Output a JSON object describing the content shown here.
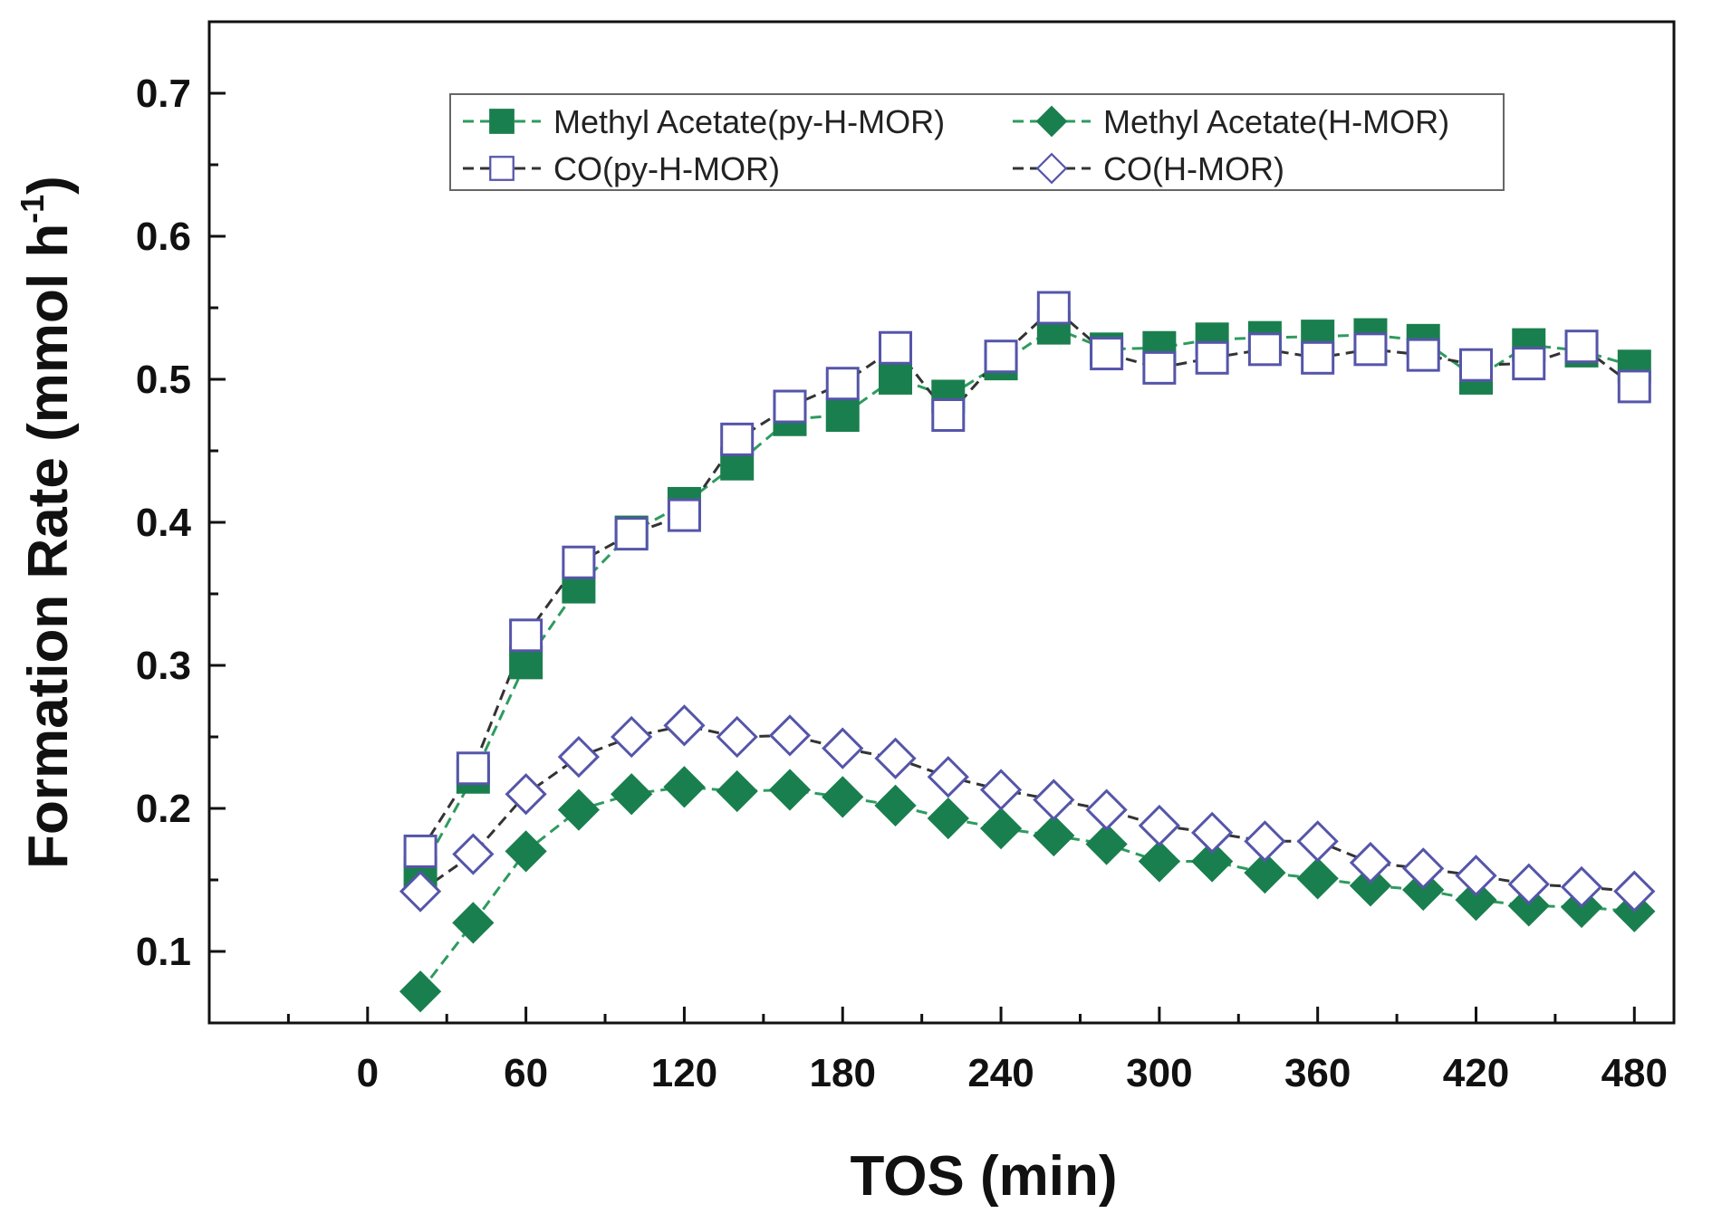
{
  "chart_data": {
    "type": "line",
    "title": "",
    "xlabel": "TOS (min)",
    "ylabel_main": "Formation Rate (mmol h",
    "ylabel_sup": "-1",
    "ylabel_close": ")",
    "xlim": [
      -60,
      495
    ],
    "ylim": [
      0.05,
      0.75
    ],
    "xticks": [
      0,
      60,
      120,
      180,
      240,
      300,
      360,
      420,
      480
    ],
    "xtick_labels": [
      "0",
      "60",
      "120",
      "180",
      "240",
      "300",
      "360",
      "420",
      "480"
    ],
    "yticks": [
      0.1,
      0.2,
      0.3,
      0.4,
      0.5,
      0.6,
      0.7
    ],
    "ytick_labels": [
      "0.1",
      "0.2",
      "0.3",
      "0.4",
      "0.5",
      "0.6",
      "0.7"
    ],
    "legend_position": "top",
    "grid": false,
    "x": [
      20,
      40,
      60,
      80,
      100,
      120,
      140,
      160,
      180,
      200,
      220,
      240,
      260,
      280,
      300,
      320,
      340,
      360,
      380,
      400,
      420,
      440,
      460,
      480
    ],
    "series": [
      {
        "name": "Methyl Acetate(py-H-MOR)",
        "marker": "square-filled",
        "color": "#1a7f4e",
        "line_color": "#2e9b5f",
        "values": [
          0.155,
          0.222,
          0.302,
          0.355,
          0.393,
          0.413,
          0.441,
          0.472,
          0.475,
          0.501,
          0.488,
          0.511,
          0.536,
          0.521,
          0.522,
          0.528,
          0.529,
          0.53,
          0.531,
          0.527,
          0.501,
          0.524,
          0.52,
          0.509
        ]
      },
      {
        "name": "Methyl Acetate(H-MOR)",
        "marker": "diamond-filled",
        "color": "#1a7f4e",
        "line_color": "#2e9b5f",
        "values": [
          0.072,
          0.12,
          0.17,
          0.199,
          0.21,
          0.215,
          0.212,
          0.213,
          0.208,
          0.202,
          0.193,
          0.186,
          0.181,
          0.175,
          0.163,
          0.163,
          0.155,
          0.151,
          0.146,
          0.143,
          0.136,
          0.132,
          0.131,
          0.128
        ]
      },
      {
        "name": "CO(py-H-MOR)",
        "marker": "square-open",
        "color": "#5555aa",
        "line_color": "#333333",
        "values": [
          0.17,
          0.228,
          0.321,
          0.372,
          0.392,
          0.405,
          0.458,
          0.481,
          0.497,
          0.522,
          0.475,
          0.516,
          0.55,
          0.518,
          0.508,
          0.515,
          0.521,
          0.515,
          0.521,
          0.517,
          0.51,
          0.511,
          0.523,
          0.495
        ]
      },
      {
        "name": "CO(H-MOR)",
        "marker": "diamond-open",
        "color": "#5555aa",
        "line_color": "#333333",
        "values": [
          0.142,
          0.168,
          0.21,
          0.236,
          0.25,
          0.258,
          0.25,
          0.251,
          0.242,
          0.235,
          0.222,
          0.213,
          0.206,
          0.199,
          0.188,
          0.183,
          0.177,
          0.177,
          0.162,
          0.158,
          0.153,
          0.147,
          0.145,
          0.142
        ]
      }
    ]
  }
}
